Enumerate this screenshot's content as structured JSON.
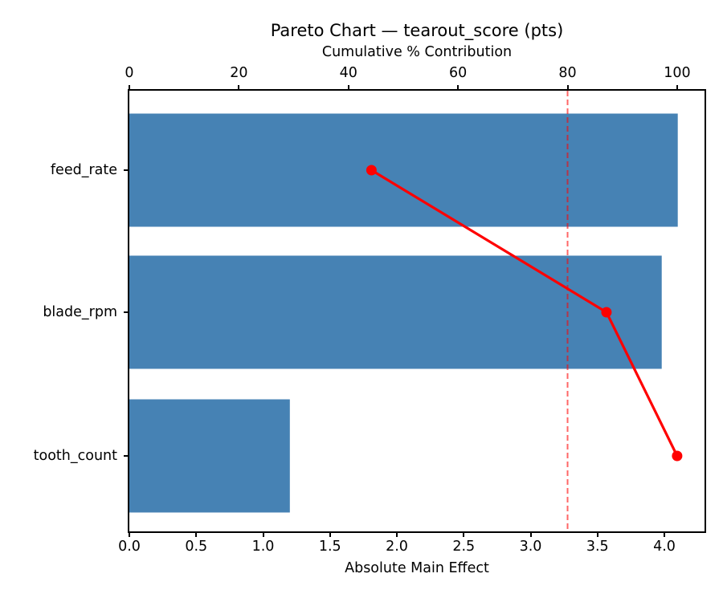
{
  "chart_data": {
    "type": "bar",
    "orientation": "horizontal",
    "title": "Pareto Chart — tearout_score (pts)",
    "xlabel_top": "Cumulative % Contribution",
    "xlabel_bottom": "Absolute Main Effect",
    "categories": [
      "feed_rate",
      "blade_rpm",
      "tooth_count"
    ],
    "series": [
      {
        "name": "Absolute Main Effect",
        "type": "bar",
        "values": [
          4.1,
          3.98,
          1.2
        ]
      },
      {
        "name": "Cumulative % Contribution",
        "type": "line",
        "values": [
          44.2,
          87.1,
          100.0
        ]
      }
    ],
    "threshold_line": {
      "value": 80,
      "axis": "top",
      "style": "dashed"
    },
    "xlim_bottom": [
      0,
      4.3
    ],
    "xlim_top": [
      0,
      105
    ],
    "xticks_bottom": {
      "values": [
        0,
        0.5,
        1,
        1.5,
        2,
        2.5,
        3,
        3.5,
        4
      ],
      "labels": [
        "0.0",
        "0.5",
        "1.0",
        "1.5",
        "2.0",
        "2.5",
        "3.0",
        "3.5",
        "4.0"
      ]
    },
    "xticks_top": {
      "values": [
        0,
        20,
        40,
        60,
        80,
        100
      ],
      "labels": [
        "0",
        "20",
        "40",
        "60",
        "80",
        "100"
      ]
    },
    "grid": false,
    "legend": null,
    "colors": {
      "bar": "#4682b4",
      "line": "#ff0000",
      "threshold": "rgba(255,0,0,0.6)",
      "axis": "#000000",
      "background": "#ffffff"
    }
  }
}
